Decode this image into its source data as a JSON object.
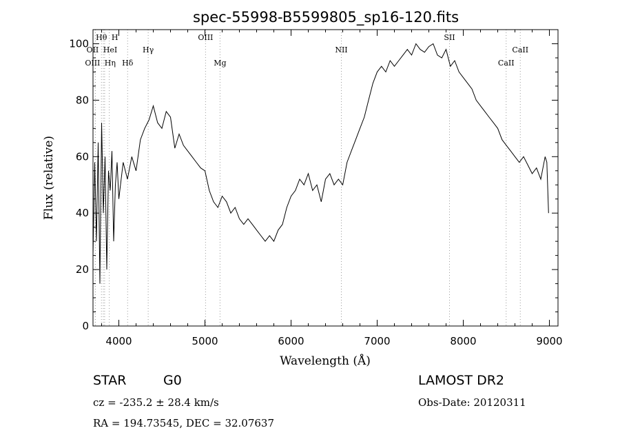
{
  "chart_data": {
    "type": "line",
    "title": "spec-55998-B5599805_sp16-120.fits",
    "xlabel": "Wavelength (Å)",
    "ylabel": "Flux (relative)",
    "xlim": [
      3700,
      9100
    ],
    "ylim": [
      0,
      105
    ],
    "xticks": [
      4000,
      5000,
      6000,
      7000,
      8000,
      9000
    ],
    "yticks": [
      0,
      20,
      40,
      60,
      80,
      100
    ],
    "grid": false,
    "series": [
      {
        "x": [
          3700,
          3720,
          3740,
          3760,
          3780,
          3800,
          3820,
          3840,
          3860,
          3880,
          3900,
          3920,
          3940,
          3960,
          3980,
          4000,
          4050,
          4100,
          4150,
          4200,
          4250,
          4300,
          4350,
          4400,
          4450,
          4500,
          4550,
          4600,
          4650,
          4700,
          4750,
          4800,
          4850,
          4900,
          4950,
          5000,
          5050,
          5100,
          5150,
          5200,
          5250,
          5300,
          5350,
          5400,
          5450,
          5500,
          5550,
          5600,
          5650,
          5700,
          5750,
          5800,
          5850,
          5900,
          5950,
          6000,
          6050,
          6100,
          6150,
          6200,
          6250,
          6300,
          6350,
          6400,
          6450,
          6500,
          6550,
          6600,
          6650,
          6700,
          6750,
          6800,
          6850,
          6900,
          6950,
          7000,
          7050,
          7100,
          7150,
          7200,
          7250,
          7300,
          7350,
          7400,
          7450,
          7500,
          7550,
          7600,
          7650,
          7700,
          7750,
          7800,
          7850,
          7900,
          7950,
          8000,
          8050,
          8100,
          8150,
          8200,
          8250,
          8300,
          8350,
          8400,
          8450,
          8500,
          8550,
          8600,
          8650,
          8700,
          8750,
          8800,
          8850,
          8900,
          8950,
          8970,
          8990
        ],
        "y": [
          25,
          58,
          30,
          65,
          15,
          72,
          40,
          60,
          20,
          55,
          48,
          62,
          30,
          50,
          58,
          45,
          58,
          52,
          60,
          55,
          66,
          70,
          73,
          78,
          72,
          70,
          76,
          74,
          63,
          68,
          64,
          62,
          60,
          58,
          56,
          55,
          48,
          44,
          42,
          46,
          44,
          40,
          42,
          38,
          36,
          38,
          36,
          34,
          32,
          30,
          32,
          30,
          34,
          36,
          42,
          46,
          48,
          52,
          50,
          54,
          48,
          50,
          44,
          52,
          54,
          50,
          52,
          50,
          58,
          62,
          66,
          70,
          74,
          80,
          86,
          90,
          92,
          90,
          94,
          92,
          94,
          96,
          98,
          96,
          100,
          98,
          97,
          99,
          100,
          96,
          95,
          98,
          92,
          94,
          90,
          88,
          86,
          84,
          80,
          78,
          76,
          74,
          72,
          70,
          66,
          64,
          62,
          60,
          58,
          60,
          57,
          54,
          56,
          52,
          60,
          58,
          40
        ]
      }
    ],
    "lines": [
      {
        "label": "Hθ",
        "x": 3798
      },
      {
        "label": "H",
        "x": 3889
      },
      {
        "label": "OII",
        "x": 3727
      },
      {
        "label": "HeI",
        "x": 3820
      },
      {
        "label": "OIII",
        "x": 3727
      },
      {
        "label": "Hη",
        "x": 3835
      },
      {
        "label": "Hγ",
        "x": 4341
      },
      {
        "label": "Hδ",
        "x": 4102
      },
      {
        "label": "OIII",
        "x": 5007
      },
      {
        "label": "Mg",
        "x": 5175
      },
      {
        "label": "NII",
        "x": 6584
      },
      {
        "label": "SII",
        "x": 7840
      },
      {
        "label": "CaII",
        "x": 8662
      },
      {
        "label": "CaII",
        "x": 8498
      }
    ]
  },
  "info": {
    "class": "STAR",
    "subclass": "G0",
    "survey": "LAMOST DR2",
    "cz": "cz = -235.2 ± 28.4 km/s",
    "obs_date": "Obs-Date: 20120311",
    "coords": "RA = 194.73545, DEC =  32.07637"
  }
}
